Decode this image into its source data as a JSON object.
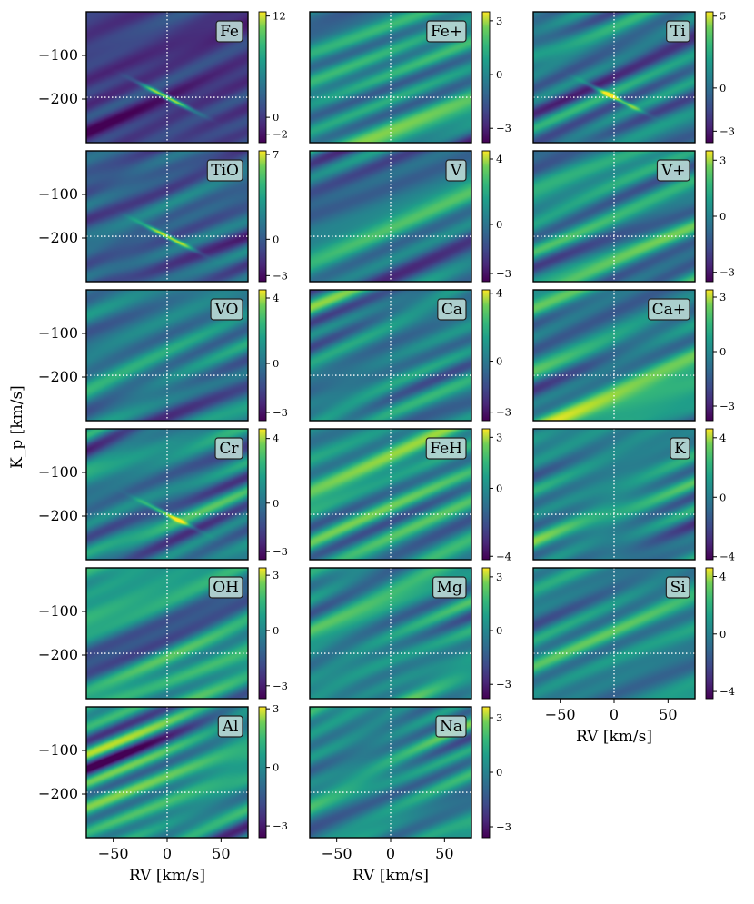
{
  "figure": {
    "ylabel": "K_p [km/s]",
    "xlabel": "RV [km/s]"
  },
  "chart_data": {
    "type": "heatmap",
    "title": "",
    "xlabel": "RV [km/s]",
    "ylabel": "K_p [km/s]",
    "xlim": [
      -75,
      75
    ],
    "ylim": [
      -300,
      0
    ],
    "xticks": [
      -50,
      0,
      50
    ],
    "xtick_labels": [
      "−50",
      "0",
      "50"
    ],
    "yticks": [
      -100,
      -200
    ],
    "ytick_labels": [
      "−100",
      "−200"
    ],
    "marker_lines": {
      "rv": 0,
      "kp": -196
    },
    "colormap": "viridis",
    "panels": [
      {
        "species": "Fe",
        "cbar_min": -3,
        "cbar_max": 12.5,
        "cbar_ticks": [
          12,
          0,
          -2
        ],
        "cbar_tick_labels": [
          "12",
          "0",
          "−2"
        ],
        "signal": 12
      },
      {
        "species": "Fe+",
        "cbar_min": -3.8,
        "cbar_max": 3.5,
        "cbar_ticks": [
          3,
          0,
          -3
        ],
        "cbar_tick_labels": [
          "3",
          "0",
          "−3"
        ],
        "signal": 0
      },
      {
        "species": "Ti",
        "cbar_min": -3.8,
        "cbar_max": 5.3,
        "cbar_ticks": [
          5,
          0,
          -3
        ],
        "cbar_tick_labels": [
          "5",
          "0",
          "−3"
        ],
        "signal": 5
      },
      {
        "species": "TiO",
        "cbar_min": -3.5,
        "cbar_max": 7.3,
        "cbar_ticks": [
          7,
          0,
          -3
        ],
        "cbar_tick_labels": [
          "7",
          "0",
          "−3"
        ],
        "signal": 7
      },
      {
        "species": "V",
        "cbar_min": -3.5,
        "cbar_max": 4.5,
        "cbar_ticks": [
          4,
          0,
          -3
        ],
        "cbar_tick_labels": [
          "4",
          "0",
          "−3"
        ],
        "signal": 0
      },
      {
        "species": "V+",
        "cbar_min": -3.5,
        "cbar_max": 3.5,
        "cbar_ticks": [
          3,
          0,
          -3
        ],
        "cbar_tick_labels": [
          "3",
          "0",
          "−3"
        ],
        "signal": 0
      },
      {
        "species": "VO",
        "cbar_min": -3.5,
        "cbar_max": 4.5,
        "cbar_ticks": [
          4,
          0,
          -3
        ],
        "cbar_tick_labels": [
          "4",
          "0",
          "−3"
        ],
        "signal": 0
      },
      {
        "species": "Ca",
        "cbar_min": -3.5,
        "cbar_max": 4.2,
        "cbar_ticks": [
          4,
          0,
          -3
        ],
        "cbar_tick_labels": [
          "4",
          "0",
          "−3"
        ],
        "signal": 0
      },
      {
        "species": "Ca+",
        "cbar_min": -3.8,
        "cbar_max": 3.4,
        "cbar_ticks": [
          3,
          0,
          -3
        ],
        "cbar_tick_labels": [
          "3",
          "0",
          "−3"
        ],
        "signal": 0
      },
      {
        "species": "Cr",
        "cbar_min": -3.5,
        "cbar_max": 4.6,
        "cbar_ticks": [
          4,
          0,
          -3
        ],
        "cbar_tick_labels": [
          "4",
          "0",
          "−3"
        ],
        "signal": 4
      },
      {
        "species": "FeH",
        "cbar_min": -4.2,
        "cbar_max": 3.5,
        "cbar_ticks": [
          3,
          0,
          -4
        ],
        "cbar_tick_labels": [
          "3",
          "0",
          "−4"
        ],
        "signal": 0
      },
      {
        "species": "K",
        "cbar_min": -4.2,
        "cbar_max": 4.6,
        "cbar_ticks": [
          4,
          0,
          -4
        ],
        "cbar_tick_labels": [
          "4",
          "0",
          "−4"
        ],
        "signal": 0
      },
      {
        "species": "OH",
        "cbar_min": -3.7,
        "cbar_max": 3.4,
        "cbar_ticks": [
          3,
          0,
          -3
        ],
        "cbar_tick_labels": [
          "3",
          "0",
          "−3"
        ],
        "signal": 0
      },
      {
        "species": "Mg",
        "cbar_min": -3.8,
        "cbar_max": 3.5,
        "cbar_ticks": [
          3,
          0,
          -3
        ],
        "cbar_tick_labels": [
          "3",
          "0",
          "−3"
        ],
        "signal": 0
      },
      {
        "species": "Si",
        "cbar_min": -4.5,
        "cbar_max": 4.6,
        "cbar_ticks": [
          4,
          0,
          -4
        ],
        "cbar_tick_labels": [
          "4",
          "0",
          "−4"
        ],
        "signal": 0
      },
      {
        "species": "Al",
        "cbar_min": -3.6,
        "cbar_max": 3.1,
        "cbar_ticks": [
          3,
          0,
          -3
        ],
        "cbar_tick_labels": [
          "3",
          "0",
          "−3"
        ],
        "signal": 0
      },
      {
        "species": "Na",
        "cbar_min": -3.6,
        "cbar_max": 3.6,
        "cbar_ticks": [
          3,
          0,
          -3
        ],
        "cbar_tick_labels": [
          "3",
          "0",
          "−3"
        ],
        "signal": 0
      }
    ]
  }
}
